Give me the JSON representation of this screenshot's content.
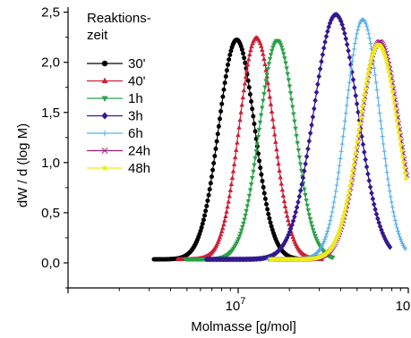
{
  "chart_data": {
    "type": "line",
    "xlabel": "Molmasse [g/mol]",
    "ylabel": "dW / d (log M)",
    "xscale": "log",
    "xlim": [
      1000000,
      100000000
    ],
    "ylim": [
      -0.25,
      2.55
    ],
    "y_ticks": [
      "0,0",
      "0,5",
      "1,0",
      "1,5",
      "2,0",
      "2,5"
    ],
    "x_tick_labels": [
      {
        "base": "10",
        "exp": "7",
        "value": 10000000
      },
      {
        "base": "10",
        "exp": "8",
        "value": 100000000
      }
    ],
    "legend": {
      "title_lines": [
        "Reaktions-",
        "zeit"
      ],
      "placement": "top-left"
    },
    "series": [
      {
        "name": "30'",
        "color": "#000000",
        "marker": "circle",
        "peak_x": 9800000,
        "peak_y": 2.19,
        "sigma_log": 0.105,
        "x_range": [
          3200000,
          25000000
        ]
      },
      {
        "name": "40'",
        "color": "#cc2038",
        "marker": "triangle-up",
        "peak_x": 12800000,
        "peak_y": 2.21,
        "sigma_log": 0.1,
        "x_range": [
          4400000,
          31000000
        ]
      },
      {
        "name": "1h",
        "color": "#2aa146",
        "marker": "triangle-down",
        "peak_x": 17000000,
        "peak_y": 2.18,
        "sigma_log": 0.105,
        "x_range": [
          4900000,
          36000000
        ]
      },
      {
        "name": "3h",
        "color": "#34188f",
        "marker": "diamond",
        "peak_x": 37500000,
        "peak_y": 2.44,
        "sigma_log": 0.13,
        "x_range": [
          6500000,
          78000000
        ]
      },
      {
        "name": "6h",
        "color": "#55b0e6",
        "marker": "plus",
        "peak_x": 54000000,
        "peak_y": 2.39,
        "sigma_log": 0.1,
        "x_range": [
          15000000,
          96000000
        ]
      },
      {
        "name": "24h",
        "color": "#9c1e7c",
        "marker": "x",
        "peak_x": 68000000,
        "peak_y": 2.17,
        "sigma_log": 0.115,
        "x_range": [
          16000000,
          98000000
        ]
      },
      {
        "name": "48h",
        "color": "#ecec1e",
        "marker": "star",
        "peak_x": 67000000,
        "peak_y": 2.14,
        "sigma_log": 0.115,
        "x_range": [
          15500000,
          97000000
        ]
      }
    ]
  }
}
